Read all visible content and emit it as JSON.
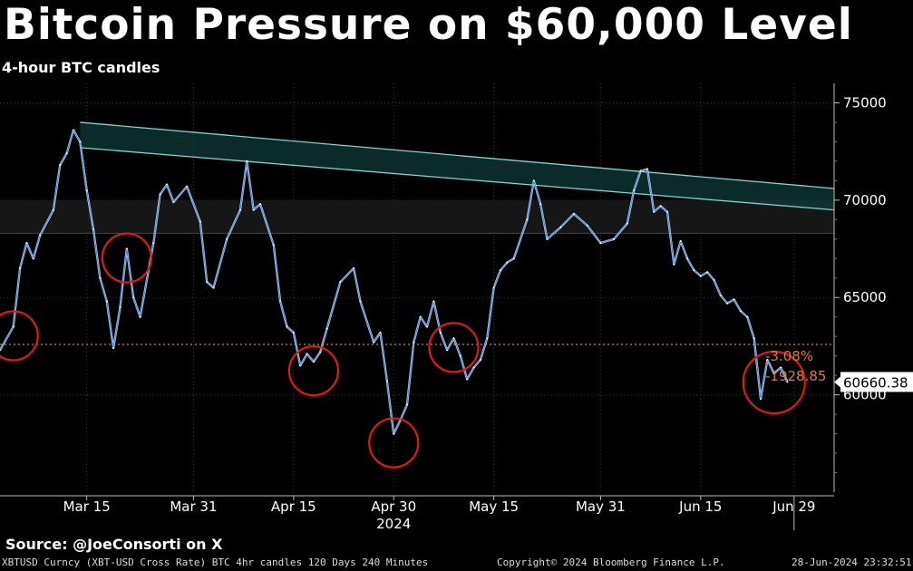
{
  "header": {
    "title": "Bitcoin Pressure on $60,000 Level",
    "subtitle": "4-hour BTC candles"
  },
  "source": "Source: @JoeConsorti on X",
  "footer": {
    "left": "XBTUSD Curncy (XBT-USD Cross Rate) BTC 4hr candles 120 Days 240 Minutes",
    "center": "Copyright© 2024 Bloomberg Finance L.P.",
    "right": "28-Jun-2024 23:32:51"
  },
  "chart_data": {
    "type": "line",
    "y_ticks": [
      60000,
      65000,
      70000,
      75000
    ],
    "y_tick_labels": [
      "60000",
      "65000",
      "70000",
      "75000"
    ],
    "ylim": [
      55000,
      76000
    ],
    "x_tick_labels": [
      "Mar 15",
      "Mar 31",
      "Apr 15",
      "Apr 30",
      "May 15",
      "May 31",
      "Jun 15",
      "Jun 29"
    ],
    "x_year_label": "2024",
    "x_ticks": [
      "2024-03-15",
      "2024-03-31",
      "2024-04-15",
      "2024-04-30",
      "2024-05-15",
      "2024-05-31",
      "2024-06-15",
      "2024-06-29"
    ],
    "xlim": [
      "2024-03-02",
      "2024-07-05"
    ],
    "series": [
      {
        "color": "#4a90e2",
        "x": [
          "2024-03-02",
          "2024-03-04",
          "2024-03-05",
          "2024-03-06",
          "2024-03-07",
          "2024-03-08",
          "2024-03-10",
          "2024-03-11",
          "2024-03-12",
          "2024-03-13",
          "2024-03-14",
          "2024-03-15",
          "2024-03-16",
          "2024-03-17",
          "2024-03-18",
          "2024-03-19",
          "2024-03-20",
          "2024-03-21",
          "2024-03-22",
          "2024-03-23",
          "2024-03-25",
          "2024-03-26",
          "2024-03-27",
          "2024-03-28",
          "2024-03-30",
          "2024-04-01",
          "2024-04-02",
          "2024-04-03",
          "2024-04-05",
          "2024-04-07",
          "2024-04-08",
          "2024-04-09",
          "2024-04-10",
          "2024-04-12",
          "2024-04-13",
          "2024-04-14",
          "2024-04-15",
          "2024-04-16",
          "2024-04-17",
          "2024-04-18",
          "2024-04-19",
          "2024-04-20",
          "2024-04-22",
          "2024-04-24",
          "2024-04-25",
          "2024-04-27",
          "2024-04-28",
          "2024-04-29",
          "2024-04-30",
          "2024-05-01",
          "2024-05-02",
          "2024-05-03",
          "2024-05-04",
          "2024-05-05",
          "2024-05-06",
          "2024-05-07",
          "2024-05-08",
          "2024-05-09",
          "2024-05-10",
          "2024-05-11",
          "2024-05-12",
          "2024-05-13",
          "2024-05-14",
          "2024-05-15",
          "2024-05-16",
          "2024-05-17",
          "2024-05-18",
          "2024-05-20",
          "2024-05-21",
          "2024-05-22",
          "2024-05-23",
          "2024-05-25",
          "2024-05-27",
          "2024-05-29",
          "2024-05-31",
          "2024-06-02",
          "2024-06-04",
          "2024-06-05",
          "2024-06-06",
          "2024-06-07",
          "2024-06-08",
          "2024-06-09",
          "2024-06-10",
          "2024-06-11",
          "2024-06-12",
          "2024-06-13",
          "2024-06-14",
          "2024-06-15",
          "2024-06-16",
          "2024-06-17",
          "2024-06-18",
          "2024-06-19",
          "2024-06-20",
          "2024-06-21",
          "2024-06-22",
          "2024-06-23",
          "2024-06-24",
          "2024-06-25",
          "2024-06-26",
          "2024-06-27",
          "2024-06-28"
        ],
        "values": [
          62300,
          63500,
          66500,
          67800,
          67000,
          68200,
          69500,
          71800,
          72400,
          73600,
          73000,
          70500,
          68500,
          66000,
          64800,
          62400,
          64500,
          67500,
          65000,
          64000,
          67800,
          70300,
          70800,
          69900,
          70700,
          68900,
          65800,
          65500,
          68000,
          69500,
          72000,
          69500,
          69800,
          67700,
          64800,
          63500,
          63200,
          61500,
          62100,
          61700,
          62200,
          63400,
          65800,
          66500,
          64800,
          62700,
          63200,
          60700,
          58000,
          58700,
          59500,
          62700,
          64000,
          63500,
          64800,
          63200,
          62300,
          62900,
          62000,
          60800,
          61400,
          61800,
          62900,
          65500,
          66400,
          66800,
          67000,
          69000,
          71000,
          69800,
          68000,
          68600,
          69300,
          68700,
          67800,
          68000,
          68800,
          70500,
          71500,
          71600,
          69400,
          69700,
          69400,
          66700,
          67900,
          67000,
          66400,
          66100,
          66300,
          65900,
          65100,
          64700,
          64900,
          64300,
          64000,
          62900,
          59800,
          61800,
          61100,
          61400,
          60660
        ]
      }
    ],
    "annotations": {
      "last_price": "60660.38",
      "pct_change": "-3.08%",
      "abs_change": "-1928.85",
      "dotted_level": 62590
    },
    "channel": {
      "upper": [
        [
          "2024-03-14",
          74000
        ],
        [
          "2024-07-05",
          70600
        ]
      ],
      "lower": [
        [
          "2024-03-14",
          72700
        ],
        [
          "2024-07-05",
          69500
        ]
      ]
    },
    "band": [
      68300,
      70000
    ],
    "circles": [
      "2024-03-04",
      "2024-03-21",
      "2024-04-18",
      "2024-04-30",
      "2024-05-09",
      "2024-06-26"
    ]
  }
}
